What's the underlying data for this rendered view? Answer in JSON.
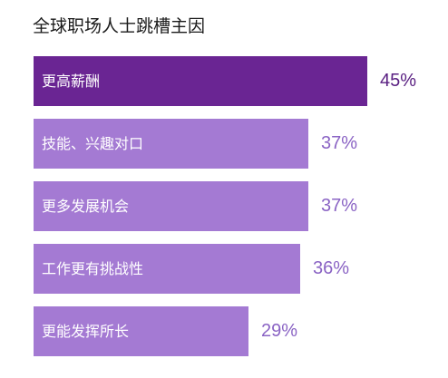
{
  "chart_data": {
    "type": "bar",
    "orientation": "horizontal",
    "title": "全球职场人士跳槽主因",
    "categories": [
      "更高薪酬",
      "技能、兴趣对口",
      "更多发展机会",
      "工作更有挑战性",
      "更能发挥所长"
    ],
    "values": [
      45,
      37,
      37,
      36,
      29
    ],
    "value_labels": [
      "45%",
      "37%",
      "37%",
      "36%",
      "29%"
    ],
    "unit": "%",
    "highlight_index": 0,
    "colors": {
      "highlight_bar": "#6a2593",
      "bar": "#a47ad3",
      "highlight_value": "#5a2082",
      "value": "#8a63c4",
      "bar_text": "#ffffff"
    },
    "grid": false,
    "legend": "none"
  }
}
